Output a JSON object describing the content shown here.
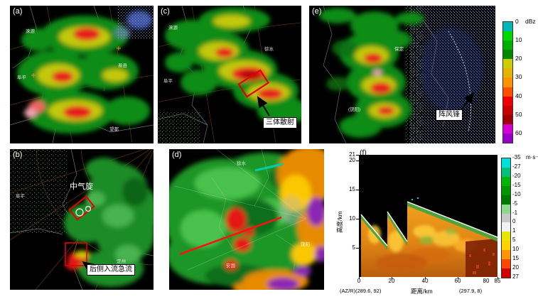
{
  "panels": {
    "a": {
      "label": "(a)",
      "map_labels": [
        "涞源",
        "阜平",
        "易县",
        "望都"
      ]
    },
    "b": {
      "label": "(b)",
      "map_labels": [
        "阜平",
        "定州"
      ],
      "meso_label": "中气旋",
      "rij_label": "后侧入流急流"
    },
    "c": {
      "label": "(c)",
      "map_labels": [
        "涞源",
        "阜平",
        "徐水"
      ],
      "tbss_label": "三体散射"
    },
    "d": {
      "label": "(d)",
      "map_labels": [
        "徐水",
        "安国",
        "饶阳"
      ]
    },
    "e": {
      "label": "(e)",
      "map_labels": [
        "保定",
        "(饶阳)"
      ],
      "gust_label": "阵风锋"
    },
    "f": {
      "label": "(f)",
      "ylabel": "高度/km",
      "xlabel": "距离/km",
      "y_ticks": [
        "21",
        "20",
        "15",
        "10",
        "5"
      ],
      "x_ticks": [
        "0",
        "20",
        "40",
        "60",
        "80",
        "85"
      ],
      "left_note": "(AZ/R)(289.6, 92)",
      "right_note": "(297.9, 8)"
    }
  },
  "colorbars": {
    "dbz": {
      "unit": "dBz",
      "ticks": [
        "0",
        "10",
        "20",
        "30",
        "40",
        "50",
        "60"
      ],
      "colors": [
        "#00b6b6",
        "#00d800",
        "#00b000",
        "#008800",
        "#cccc00",
        "#e6b400",
        "#ff9200",
        "#ff5000",
        "#f00000",
        "#c80000",
        "#a00000",
        "#d400d4",
        "#9600c8"
      ]
    },
    "vel": {
      "unit": "m·s⁻¹",
      "ticks": [
        "-35",
        "-27",
        "-20",
        "-15",
        "-10",
        "-5",
        "-1",
        "0",
        "1",
        "5",
        "10",
        "15",
        "20",
        "27"
      ],
      "colors": [
        "#00e0e0",
        "#00c07a",
        "#00b400",
        "#009600",
        "#007800",
        "#8cd88c",
        "#c8c8c8",
        "#f2f2f2",
        "#e6e600",
        "#ffd200",
        "#ff9600",
        "#ff4600",
        "#d00000"
      ]
    }
  },
  "chart_data": {
    "type": "heatmap",
    "description": "Radial velocity vertical cross-section (panel f)",
    "xlabel": "距离/km",
    "ylabel": "高度/km",
    "xlim": [
      0,
      85
    ],
    "ylim": [
      0,
      21
    ],
    "x_ticks": [
      0,
      20,
      40,
      60,
      80,
      85
    ],
    "y_ticks": [
      5,
      10,
      15,
      20,
      21
    ],
    "colorbar_unit": "m·s⁻¹",
    "colorbar_levels": [
      -35,
      -27,
      -20,
      -15,
      -10,
      -5,
      -1,
      0,
      1,
      5,
      10,
      15,
      20,
      27
    ],
    "endpoints": {
      "start_az_r": "(289.6, 92)",
      "end_az_r": "(297.9, 8)"
    }
  }
}
